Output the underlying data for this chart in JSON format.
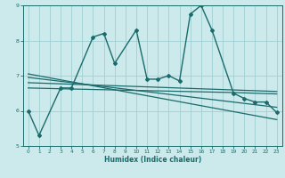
{
  "title": "",
  "xlabel": "Humidex (Indice chaleur)",
  "xlim": [
    -0.5,
    23.5
  ],
  "ylim": [
    5,
    9
  ],
  "xticks": [
    0,
    1,
    2,
    3,
    4,
    5,
    6,
    7,
    8,
    9,
    10,
    11,
    12,
    13,
    14,
    15,
    16,
    17,
    18,
    19,
    20,
    21,
    22,
    23
  ],
  "yticks": [
    5,
    6,
    7,
    8,
    9
  ],
  "bg_color": "#cce9eb",
  "grid_color": "#a0cfd3",
  "line_color": "#1a6b6b",
  "lines": [
    {
      "x": [
        0,
        1,
        3,
        4,
        6,
        7,
        8,
        10,
        11,
        12,
        13,
        14,
        15,
        16,
        17,
        19,
        20,
        21,
        22,
        23
      ],
      "y": [
        6.0,
        5.3,
        6.65,
        6.65,
        8.1,
        8.2,
        7.35,
        8.3,
        6.9,
        6.9,
        7.0,
        6.85,
        8.75,
        9.0,
        8.3,
        6.5,
        6.35,
        6.25,
        6.25,
        5.95
      ],
      "marker": "D",
      "markersize": 2.0,
      "linewidth": 1.0
    },
    {
      "x": [
        0,
        4,
        10,
        19,
        23
      ],
      "y": [
        6.65,
        6.62,
        6.58,
        6.52,
        6.48
      ],
      "marker": null,
      "linewidth": 0.9
    },
    {
      "x": [
        0,
        23
      ],
      "y": [
        6.8,
        6.55
      ],
      "marker": null,
      "linewidth": 0.9
    },
    {
      "x": [
        0,
        23
      ],
      "y": [
        6.95,
        6.1
      ],
      "marker": null,
      "linewidth": 0.9
    },
    {
      "x": [
        0,
        23
      ],
      "y": [
        7.05,
        5.75
      ],
      "marker": null,
      "linewidth": 0.9
    }
  ]
}
